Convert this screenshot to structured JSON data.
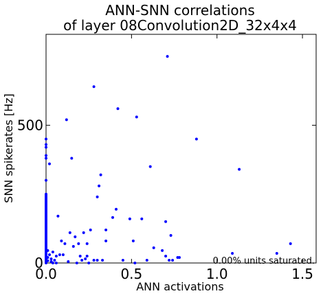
{
  "chart_data": {
    "type": "scatter",
    "title_line1": "ANN-SNN correlations",
    "title_line2": "of layer 08Convolution2D_32x4x4",
    "xlabel": "ANN activations",
    "ylabel": "SNN spikerates [Hz]",
    "annotation": "0.00% units saturated.",
    "xlim": [
      0,
      1.58
    ],
    "ylim": [
      0,
      830
    ],
    "xticks": [
      0.0,
      0.5,
      1.0,
      1.5
    ],
    "xtick_labels": [
      "0.0",
      "0.5",
      "1.0",
      "1.5"
    ],
    "yticks": [
      0,
      500
    ],
    "ytick_labels": [
      "0",
      "500"
    ],
    "grid": false,
    "marker_color": "#0000ff",
    "points": [
      [
        0.0,
        0
      ],
      [
        0.0,
        5
      ],
      [
        0.0,
        10
      ],
      [
        0.0,
        15
      ],
      [
        0.0,
        20
      ],
      [
        0.0,
        25
      ],
      [
        0.0,
        30
      ],
      [
        0.0,
        35
      ],
      [
        0.0,
        40
      ],
      [
        0.0,
        45
      ],
      [
        0.0,
        50
      ],
      [
        0.0,
        55
      ],
      [
        0.0,
        60
      ],
      [
        0.0,
        65
      ],
      [
        0.0,
        70
      ],
      [
        0.0,
        75
      ],
      [
        0.0,
        80
      ],
      [
        0.0,
        85
      ],
      [
        0.0,
        90
      ],
      [
        0.0,
        95
      ],
      [
        0.0,
        100
      ],
      [
        0.0,
        105
      ],
      [
        0.0,
        110
      ],
      [
        0.0,
        115
      ],
      [
        0.0,
        120
      ],
      [
        0.0,
        125
      ],
      [
        0.0,
        130
      ],
      [
        0.0,
        135
      ],
      [
        0.0,
        140
      ],
      [
        0.0,
        145
      ],
      [
        0.0,
        150
      ],
      [
        0.0,
        155
      ],
      [
        0.0,
        160
      ],
      [
        0.0,
        165
      ],
      [
        0.0,
        170
      ],
      [
        0.0,
        175
      ],
      [
        0.0,
        180
      ],
      [
        0.0,
        185
      ],
      [
        0.0,
        190
      ],
      [
        0.0,
        195
      ],
      [
        0.0,
        200
      ],
      [
        0.0,
        205
      ],
      [
        0.0,
        210
      ],
      [
        0.0,
        215
      ],
      [
        0.0,
        220
      ],
      [
        0.0,
        225
      ],
      [
        0.0,
        230
      ],
      [
        0.0,
        235
      ],
      [
        0.0,
        240
      ],
      [
        0.0,
        245
      ],
      [
        0.0,
        250
      ],
      [
        0.0,
        300
      ],
      [
        0.0,
        380
      ],
      [
        0.0,
        390
      ],
      [
        0.0,
        420
      ],
      [
        0.0,
        430
      ],
      [
        0.0,
        450
      ],
      [
        0.01,
        8
      ],
      [
        0.01,
        20
      ],
      [
        0.01,
        45
      ],
      [
        0.02,
        360
      ],
      [
        0.02,
        30
      ],
      [
        0.03,
        5
      ],
      [
        0.03,
        15
      ],
      [
        0.04,
        0
      ],
      [
        0.04,
        40
      ],
      [
        0.05,
        10
      ],
      [
        0.06,
        25
      ],
      [
        0.06,
        0
      ],
      [
        0.07,
        170
      ],
      [
        0.08,
        30
      ],
      [
        0.09,
        80
      ],
      [
        0.1,
        30
      ],
      [
        0.11,
        70
      ],
      [
        0.12,
        520
      ],
      [
        0.13,
        5
      ],
      [
        0.14,
        110
      ],
      [
        0.15,
        380
      ],
      [
        0.16,
        60
      ],
      [
        0.17,
        95
      ],
      [
        0.18,
        0
      ],
      [
        0.19,
        70
      ],
      [
        0.2,
        25
      ],
      [
        0.21,
        10
      ],
      [
        0.22,
        110
      ],
      [
        0.23,
        15
      ],
      [
        0.24,
        70
      ],
      [
        0.24,
        25
      ],
      [
        0.25,
        0
      ],
      [
        0.26,
        120
      ],
      [
        0.28,
        640
      ],
      [
        0.28,
        10
      ],
      [
        0.3,
        240
      ],
      [
        0.3,
        10
      ],
      [
        0.31,
        280
      ],
      [
        0.32,
        320
      ],
      [
        0.33,
        10
      ],
      [
        0.35,
        120
      ],
      [
        0.35,
        80
      ],
      [
        0.39,
        165
      ],
      [
        0.41,
        195
      ],
      [
        0.42,
        560
      ],
      [
        0.45,
        10
      ],
      [
        0.49,
        160
      ],
      [
        0.51,
        80
      ],
      [
        0.52,
        0
      ],
      [
        0.53,
        530
      ],
      [
        0.56,
        160
      ],
      [
        0.59,
        10
      ],
      [
        0.61,
        350
      ],
      [
        0.63,
        55
      ],
      [
        0.68,
        45
      ],
      [
        0.7,
        150
      ],
      [
        0.7,
        25
      ],
      [
        0.71,
        750
      ],
      [
        0.72,
        10
      ],
      [
        0.73,
        100
      ],
      [
        0.74,
        10
      ],
      [
        0.77,
        20
      ],
      [
        0.78,
        20
      ],
      [
        0.88,
        450
      ],
      [
        1.09,
        35
      ],
      [
        1.13,
        340
      ],
      [
        1.35,
        35
      ],
      [
        1.43,
        70
      ]
    ]
  }
}
